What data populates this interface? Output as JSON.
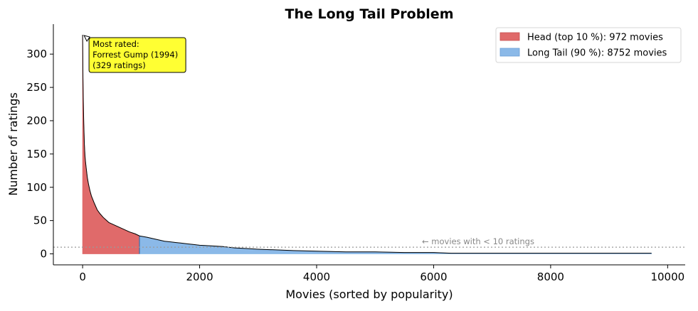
{
  "chart_data": {
    "type": "area",
    "title": "The Long Tail Problem",
    "xlabel": "Movies (sorted by popularity)",
    "ylabel": "Number of ratings",
    "xlim": [
      -500,
      10300
    ],
    "ylim": [
      -16.5,
      345
    ],
    "xticks": [
      0,
      2000,
      4000,
      6000,
      8000,
      10000
    ],
    "yticks": [
      0,
      50,
      100,
      150,
      200,
      250,
      300
    ],
    "grid": false,
    "legend_position": "top-right",
    "total_movies": 9724,
    "head_count": 972,
    "series": [
      {
        "name": "Head (top 10 %): 972 movies",
        "color": "#e06a6a",
        "x": [
          0,
          3,
          6,
          10,
          15,
          20,
          30,
          40,
          50,
          60,
          80,
          100,
          125,
          150,
          200,
          250,
          300,
          350,
          400,
          450,
          500,
          600,
          700,
          800,
          900,
          972
        ],
        "y": [
          329,
          300,
          265,
          240,
          215,
          195,
          165,
          148,
          138,
          130,
          115,
          105,
          95,
          87,
          76,
          66,
          60,
          55,
          51,
          47,
          45,
          41,
          37,
          33,
          30,
          27
        ]
      },
      {
        "name": "Long Tail (90 %): 8752 movies",
        "color": "#8bb9e8",
        "x": [
          972,
          1100,
          1200,
          1300,
          1400,
          1500,
          1600,
          1700,
          1800,
          1900,
          2000,
          2200,
          2400,
          2600,
          2800,
          3000,
          3300,
          3600,
          4000,
          4500,
          5000,
          5500,
          6000,
          6300,
          7000,
          8000,
          9000,
          9724
        ],
        "y": [
          27,
          25,
          23,
          21,
          19,
          18,
          17,
          16,
          15,
          14,
          13,
          12,
          11,
          9,
          8,
          7,
          6,
          5,
          4,
          3,
          3,
          2,
          2,
          1,
          1,
          1,
          1,
          1
        ]
      }
    ],
    "threshold": {
      "y": 10,
      "label": "← movies with < 10 ratings",
      "label_x": 5800,
      "color": "#999999"
    },
    "annotation": {
      "lines": [
        "Most rated:",
        "Forrest Gump (1994)",
        "(329 ratings)"
      ],
      "x": 0,
      "y": 329,
      "background": "#ffff33"
    }
  }
}
